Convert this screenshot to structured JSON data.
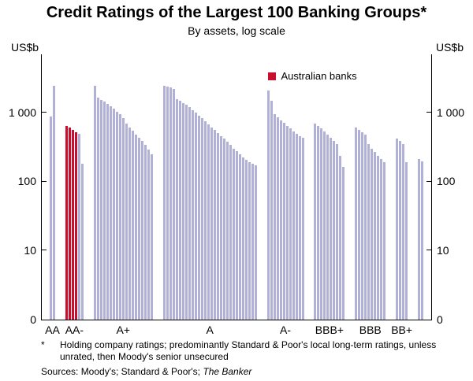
{
  "chart_data": {
    "type": "bar",
    "title": "Credit Ratings of the Largest 100 Banking Groups*",
    "subtitle": "By assets, log scale",
    "unit_left": "US$b",
    "unit_right": "US$b",
    "scale": "log",
    "log_max_exp": 3.85,
    "ylim_bottom_label": "0",
    "yticks": [
      {
        "label": "1 000",
        "value": 1000
      },
      {
        "label": "100",
        "value": 100
      },
      {
        "label": "10",
        "value": 10
      },
      {
        "label": "0",
        "value": 1
      }
    ],
    "legend_label": "Australian banks",
    "bar_color": "#b1b1d8",
    "highlight_color": "#c8102e",
    "groups": [
      {
        "label": "AA",
        "values": [
          880,
          2450
        ],
        "highlight": []
      },
      {
        "label": "AA-",
        "values": [
          650,
          610,
          565,
          530,
          500,
          185
        ],
        "highlight": [
          0,
          1,
          2,
          3
        ]
      },
      {
        "label": "A+",
        "values": [
          2500,
          1650,
          1550,
          1450,
          1350,
          1250,
          1150,
          1050,
          950,
          850,
          700,
          620,
          550,
          490,
          440,
          390,
          340,
          290,
          250
        ],
        "highlight": []
      },
      {
        "label": "A",
        "values": [
          2450,
          2400,
          2350,
          2250,
          1600,
          1500,
          1400,
          1300,
          1200,
          1100,
          1000,
          920,
          840,
          760,
          690,
          620,
          560,
          510,
          460,
          420,
          380,
          340,
          305,
          275,
          250,
          228,
          210,
          195,
          182,
          172
        ],
        "highlight": []
      },
      {
        "label": "A-",
        "values": [
          2100,
          1500,
          950,
          860,
          780,
          710,
          650,
          590,
          540,
          500,
          465,
          435
        ],
        "highlight": []
      },
      {
        "label": "BBB+",
        "values": [
          700,
          645,
          590,
          535,
          485,
          440,
          395,
          350,
          240,
          165
        ],
        "highlight": []
      },
      {
        "label": "BBB",
        "values": [
          620,
          570,
          525,
          480,
          350,
          305,
          270,
          240,
          215,
          195
        ],
        "highlight": []
      },
      {
        "label": "BB+",
        "values": [
          430,
          395,
          355,
          195
        ],
        "highlight": []
      },
      {
        "label": "",
        "values": [
          215,
          200
        ],
        "highlight": []
      }
    ],
    "footnote_marker": "*",
    "footnote": "Holding company ratings; predominantly Standard & Poor's local long-term ratings, unless unrated, then Moody's senior unsecured",
    "sources_prefix": "Sources: Moody's; Standard & Poor's; ",
    "sources_italic": "The Banker"
  }
}
